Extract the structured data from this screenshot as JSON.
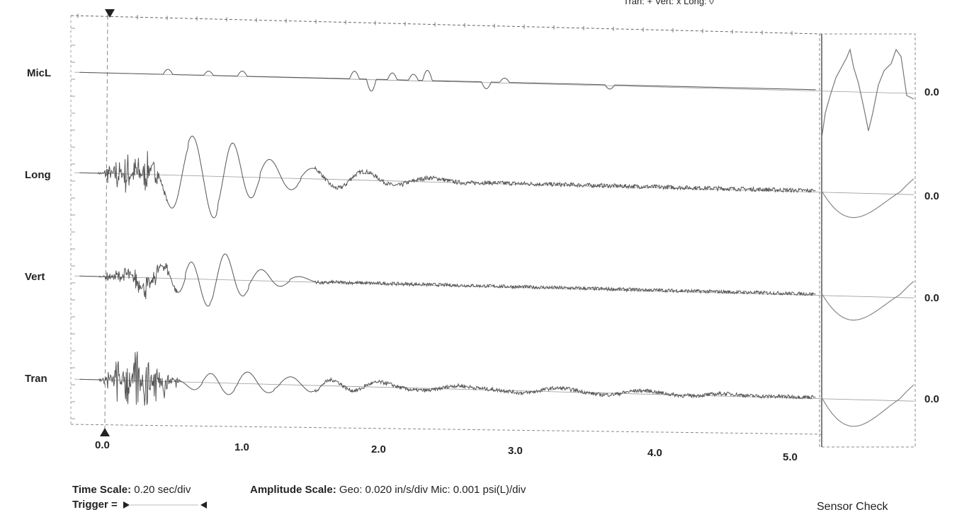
{
  "header_note": "Tran: + Vert: x Long: ◊",
  "chart_data": {
    "type": "line",
    "x_unit": "sec",
    "xlim": [
      -0.2,
      5.2
    ],
    "x_ticks": [
      "0.0",
      "1.0",
      "2.0",
      "3.0",
      "4.0",
      "5.0"
    ],
    "x_tick_values": [
      0,
      1,
      2,
      3,
      4,
      5
    ],
    "trigger_time": 0.0,
    "grid": false,
    "series": [
      {
        "name": "MicL",
        "zero_label": "0.0",
        "kind": "mic",
        "pulses": [
          [
            0.45,
            0.6
          ],
          [
            0.74,
            0.5
          ],
          [
            0.98,
            0.6
          ],
          [
            1.78,
            0.9
          ],
          [
            1.9,
            -1.4
          ],
          [
            2.05,
            0.8
          ],
          [
            2.2,
            0.7
          ],
          [
            2.3,
            1.2
          ],
          [
            2.72,
            -0.8
          ],
          [
            2.85,
            0.5
          ],
          [
            3.6,
            -0.5
          ]
        ]
      },
      {
        "name": "Long",
        "zero_label": "0.0",
        "kind": "geo",
        "noise_amp": 3.0,
        "noise_end": 0.45,
        "waves": [
          [
            0.55,
            0.17,
            4.8
          ],
          [
            0.85,
            0.17,
            5.2
          ],
          [
            1.1,
            0.2,
            2.6
          ],
          [
            1.4,
            0.22,
            1.4
          ],
          [
            1.75,
            0.25,
            1.1
          ],
          [
            2.2,
            0.3,
            0.5
          ]
        ],
        "tail_amp": 0.25,
        "tail_end": 5.05
      },
      {
        "name": "Vert",
        "zero_label": "0.0",
        "kind": "geo",
        "noise_amp": 1.6,
        "noise_end": 0.55,
        "waves": [
          [
            0.35,
            0.15,
            1.5
          ],
          [
            0.57,
            0.12,
            1.8
          ],
          [
            0.8,
            0.15,
            3.6
          ],
          [
            1.05,
            0.18,
            1.7
          ],
          [
            1.3,
            0.2,
            0.7
          ]
        ],
        "tail_amp": 0.2,
        "tail_end": 5.05
      },
      {
        "name": "Tran",
        "zero_label": "0.0",
        "kind": "geo",
        "noise_amp": 4.2,
        "noise_end": 0.55,
        "waves": [
          [
            0.7,
            0.15,
            1.1
          ],
          [
            0.95,
            0.17,
            1.5
          ],
          [
            1.25,
            0.2,
            1.0
          ],
          [
            1.55,
            0.2,
            0.9
          ],
          [
            1.85,
            0.25,
            0.6
          ],
          [
            2.4,
            0.3,
            0.4
          ],
          [
            3.1,
            0.3,
            0.4
          ],
          [
            3.7,
            0.3,
            0.35
          ],
          [
            4.3,
            0.3,
            0.2
          ]
        ],
        "tail_amp": 0.22,
        "tail_end": 5.05
      }
    ]
  },
  "footer": {
    "time_label": "Time Scale:",
    "time_value": "0.20 sec/div",
    "amp_label": "Amplitude Scale:",
    "amp_value": "Geo: 0.020 in/s/div Mic: 0.001 psi(L)/div",
    "trigger_label": "Trigger =",
    "sensor_check": "Sensor Check"
  }
}
